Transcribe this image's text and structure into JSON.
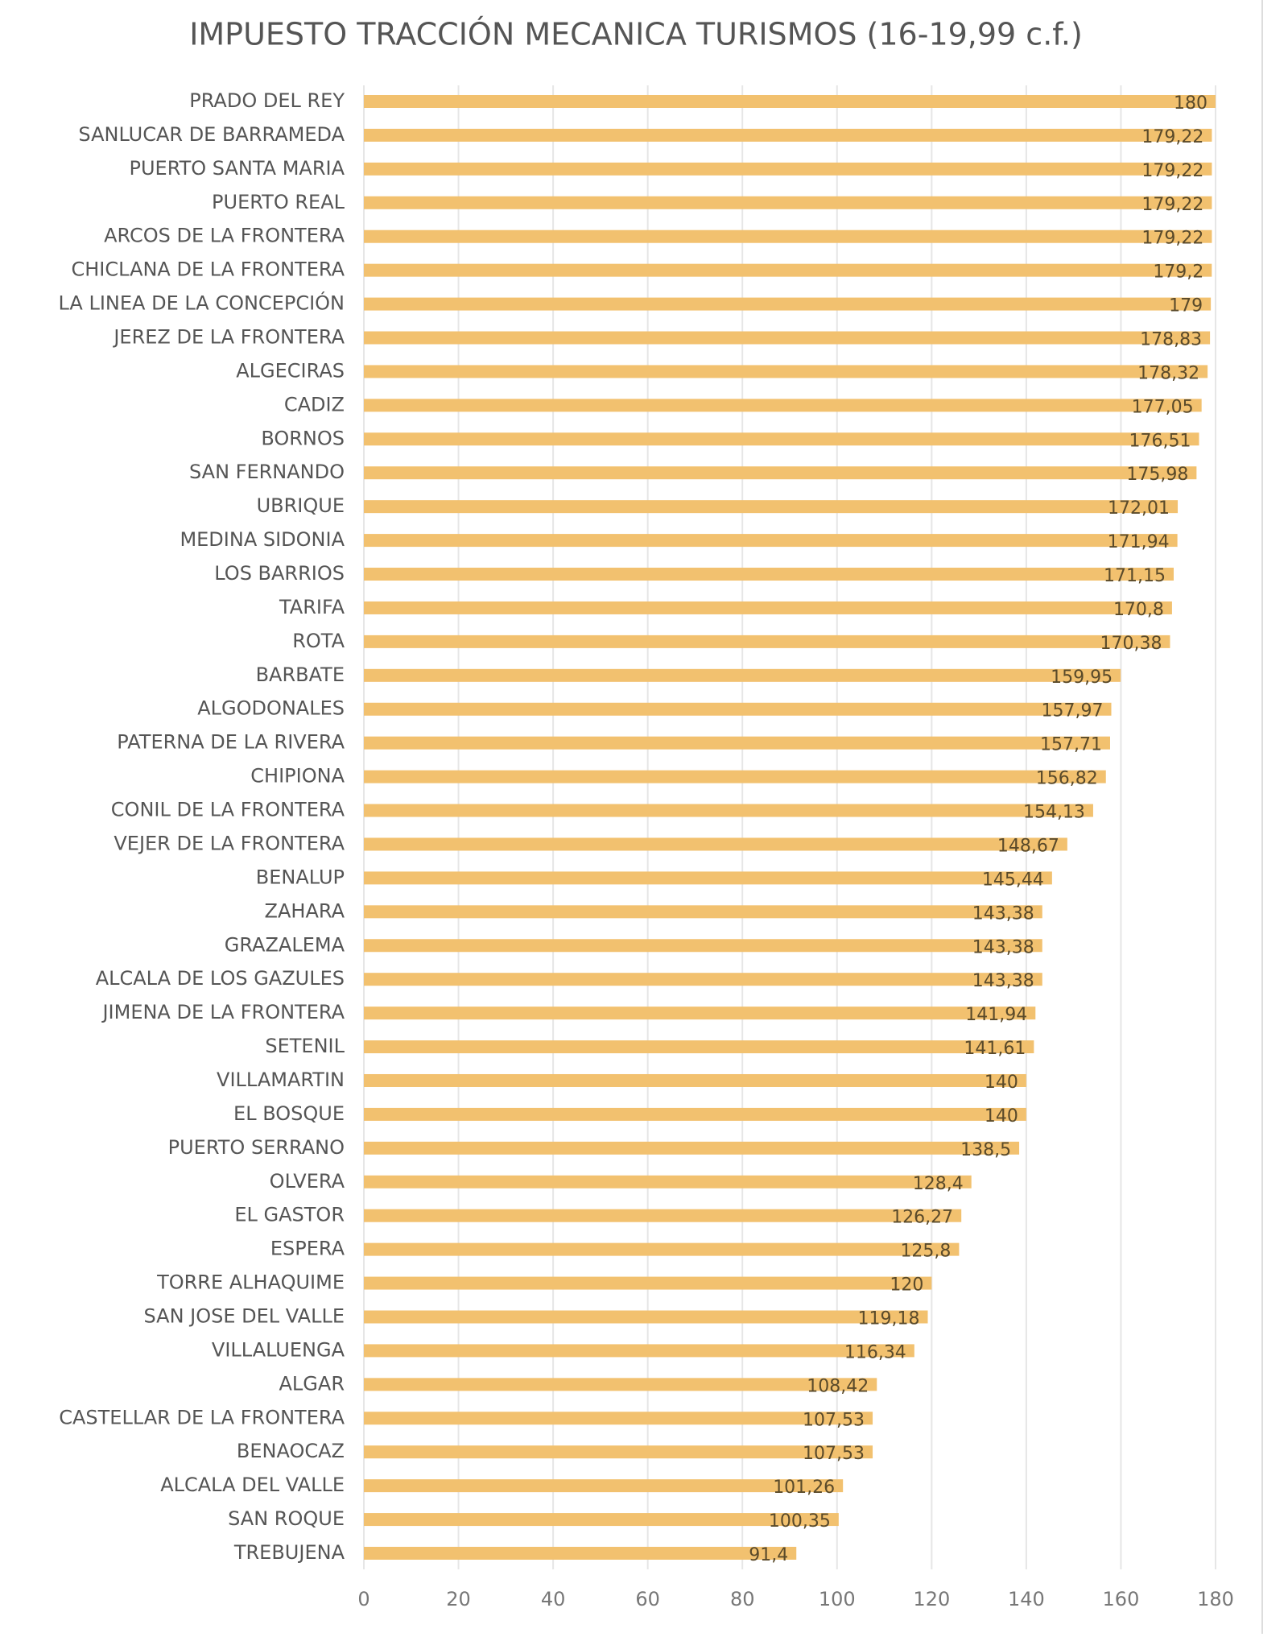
{
  "chart_data": {
    "type": "barh",
    "title": "IMPUESTO TRACCIÓN MECANICA TURISMOS (16-19,99 c.f.)",
    "categories": [
      "PRADO DEL REY",
      "SANLUCAR DE BARRAMEDA",
      "PUERTO SANTA MARIA",
      "PUERTO REAL",
      "ARCOS DE LA FRONTERA",
      "CHICLANA DE LA FRONTERA",
      "LA LINEA DE LA CONCEPCIÓN",
      "JEREZ DE LA FRONTERA",
      "ALGECIRAS",
      "CADIZ",
      "BORNOS",
      "SAN FERNANDO",
      "UBRIQUE",
      "MEDINA SIDONIA",
      "LOS BARRIOS",
      "TARIFA",
      "ROTA",
      "BARBATE",
      "ALGODONALES",
      "PATERNA DE LA RIVERA",
      "CHIPIONA",
      "CONIL DE LA FRONTERA",
      "VEJER DE LA FRONTERA",
      "BENALUP",
      "ZAHARA",
      "GRAZALEMA",
      "ALCALA DE LOS GAZULES",
      "JIMENA DE LA FRONTERA",
      "SETENIL",
      "VILLAMARTIN",
      "EL BOSQUE",
      "PUERTO SERRANO",
      "OLVERA",
      "EL GASTOR",
      "ESPERA",
      "TORRE ALHAQUIME",
      "SAN JOSE DEL VALLE",
      "VILLALUENGA",
      "ALGAR",
      "CASTELLAR DE LA FRONTERA",
      "BENAOCAZ",
      "ALCALA DEL VALLE",
      "SAN ROQUE",
      "TREBUJENA"
    ],
    "values": [
      180,
      179.22,
      179.22,
      179.22,
      179.22,
      179.2,
      179,
      178.83,
      178.32,
      177.05,
      176.51,
      175.98,
      172.01,
      171.94,
      171.15,
      170.8,
      170.38,
      159.95,
      157.97,
      157.71,
      156.82,
      154.13,
      148.67,
      145.44,
      143.38,
      143.38,
      143.38,
      141.94,
      141.61,
      140,
      140,
      138.5,
      128.4,
      126.27,
      125.8,
      120,
      119.18,
      116.34,
      108.42,
      107.53,
      107.53,
      101.26,
      100.35,
      91.4
    ],
    "value_labels": [
      "180",
      "179,22",
      "179,22",
      "179,22",
      "179,22",
      "179,2",
      "179",
      "178,83",
      "178,32",
      "177,05",
      "176,51",
      "175,98",
      "172,01",
      "171,94",
      "171,15",
      "170,8",
      "170,38",
      "159,95",
      "157,97",
      "157,71",
      "156,82",
      "154,13",
      "148,67",
      "145,44",
      "143,38",
      "143,38",
      "143,38",
      "141,94",
      "141,61",
      "140",
      "140",
      "138,5",
      "128,4",
      "126,27",
      "125,8",
      "120",
      "119,18",
      "116,34",
      "108,42",
      "107,53",
      "107,53",
      "101,26",
      "100,35",
      "91,4"
    ],
    "color": "#f2c16f",
    "xlim": [
      0,
      180
    ],
    "xticks": [
      0,
      20,
      40,
      60,
      80,
      100,
      120,
      140,
      160,
      180
    ],
    "grid": true
  }
}
